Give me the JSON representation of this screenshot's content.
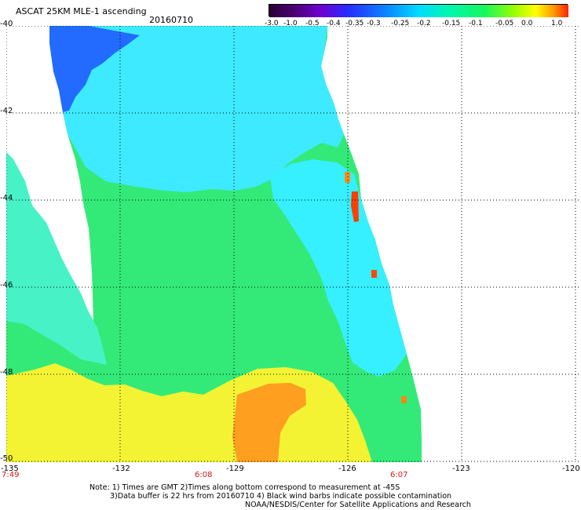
{
  "header": {
    "title": "ASCAT 25KM MLE-1 ascending",
    "date": "20160710"
  },
  "colorbar": {
    "labels": [
      "-3.0",
      "-1.0",
      "-0.5",
      "-0.4",
      "-0.35",
      "-0.3",
      "-0.25",
      "-0.2",
      "-0.15",
      "-0.1",
      "-0.05",
      "0.0",
      "1.0"
    ],
    "colors": [
      "#2a0033",
      "#5a0080",
      "#7a00c0",
      "#4d00ff",
      "#0040ff",
      "#0090ff",
      "#00e5ff",
      "#00ff9a",
      "#00ff55",
      "#7dff00",
      "#ffff00",
      "#ff9900",
      "#ff2200"
    ]
  },
  "map": {
    "lat_labels": [
      "-40",
      "-42",
      "-44",
      "-46",
      "-48",
      "-50"
    ],
    "lon_labels": [
      "-135",
      "-132",
      "-129",
      "-126",
      "-123",
      "-120"
    ],
    "time_labels": [
      "7:49",
      "6:08",
      "6:07"
    ],
    "palette": {
      "blue": "#1f5cff",
      "cyan": "#22f0ff",
      "green": "#22e36f",
      "yellow": "#f6ff1f",
      "orange": "#ff9b19",
      "red": "#ff3600"
    },
    "regions": [
      {
        "name": "swath-background",
        "fill": "#49f2a7"
      },
      {
        "name": "northwest-blue",
        "fill": "#3177f2"
      },
      {
        "name": "central-cyan",
        "fill": "#36e7ff"
      },
      {
        "name": "south-yellow",
        "fill": "#f4f62c"
      },
      {
        "name": "south-orange",
        "fill": "#ff9f1f"
      },
      {
        "name": "eastern-edge-orange",
        "fill": "#ff7f16"
      },
      {
        "name": "eastern-edge-red",
        "fill": "#ff3d00"
      }
    ]
  },
  "notes": {
    "line1": "Note: 1) Times are GMT 2)Times along bottom correspond to measurement at -45S",
    "line2": "3)Data buffer is 22 hrs from 20160710 4) Black wind barbs indicate possible contamination",
    "line3": "NOAA/NESDIS/Center for Satellite Applications and Research"
  }
}
